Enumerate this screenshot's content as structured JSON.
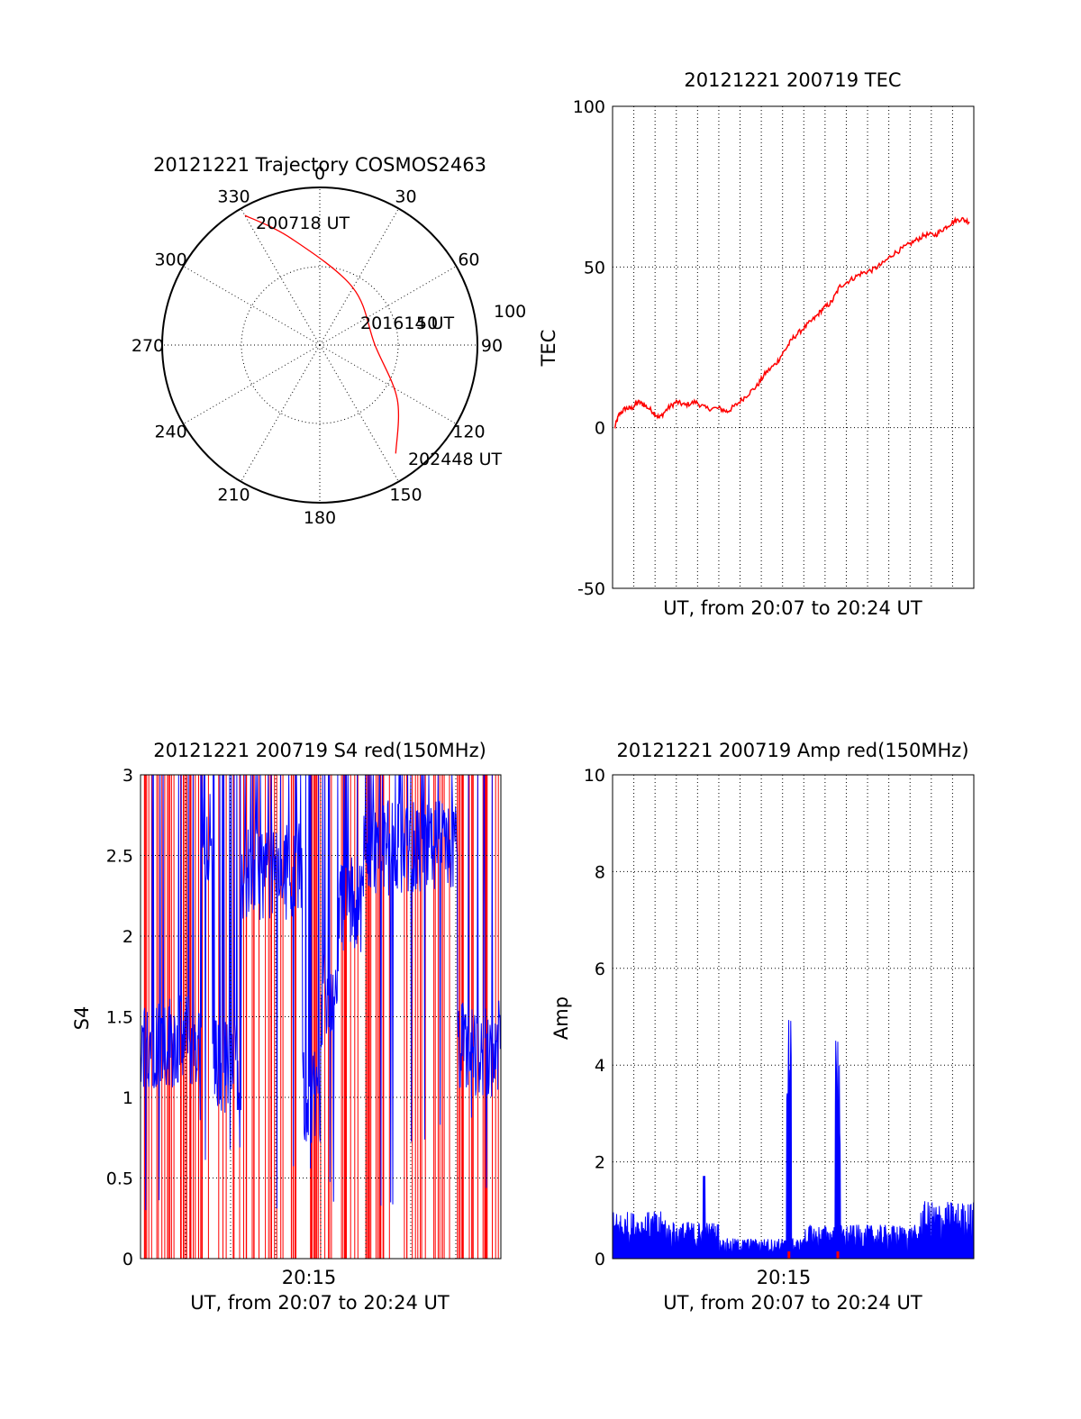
{
  "chart_data": [
    {
      "type": "polar",
      "title": "20121221 Trajectory COSMOS2463",
      "azimuth_labels": [
        "0",
        "30",
        "60",
        "90",
        "120",
        "150",
        "180",
        "210",
        "240",
        "270",
        "300",
        "330"
      ],
      "elevation_ring_label": "50",
      "outer_label": "100",
      "start_label": "200718 UT",
      "mid_label": "201614 UT",
      "end_label": "202448 UT",
      "trajectory": [
        {
          "az": 330,
          "r": 0.95
        },
        {
          "az": 345,
          "r": 0.7
        },
        {
          "az": 30,
          "r": 0.42
        },
        {
          "az": 90,
          "r": 0.35
        },
        {
          "az": 125,
          "r": 0.6
        },
        {
          "az": 145,
          "r": 0.84
        }
      ],
      "series_color": "#ff0000"
    },
    {
      "type": "line",
      "title": "20121221 200719 TEC",
      "ylabel": "TEC",
      "xlabel": "UT, from 20:07 to 20:24 UT",
      "ylim": [
        -50,
        100
      ],
      "yticks": [
        "-50",
        "0",
        "50",
        "100"
      ],
      "xlim_min": [
        7,
        24
      ],
      "grid": true,
      "series": [
        {
          "color": "#ff0000",
          "points": [
            [
              7.1,
              0
            ],
            [
              7.3,
              4
            ],
            [
              7.6,
              6
            ],
            [
              7.9,
              6
            ],
            [
              8.2,
              8
            ],
            [
              8.5,
              7
            ],
            [
              8.9,
              5
            ],
            [
              9.2,
              3
            ],
            [
              9.6,
              6
            ],
            [
              10.0,
              8
            ],
            [
              10.4,
              7
            ],
            [
              10.9,
              8
            ],
            [
              11.4,
              6
            ],
            [
              12.0,
              6
            ],
            [
              12.4,
              5
            ],
            [
              12.8,
              7
            ],
            [
              13.3,
              10
            ],
            [
              13.8,
              13
            ],
            [
              14.2,
              17
            ],
            [
              14.7,
              20
            ],
            [
              15.1,
              24
            ],
            [
              15.5,
              28
            ],
            [
              16.0,
              31
            ],
            [
              16.5,
              34
            ],
            [
              16.9,
              37
            ],
            [
              17.3,
              39
            ],
            [
              17.7,
              44
            ],
            [
              18.2,
              46
            ],
            [
              18.7,
              48
            ],
            [
              19.2,
              49
            ],
            [
              19.7,
              51
            ],
            [
              20.2,
              54
            ],
            [
              20.7,
              56
            ],
            [
              21.2,
              58
            ],
            [
              21.7,
              60
            ],
            [
              22.2,
              60
            ],
            [
              22.6,
              62
            ],
            [
              23.0,
              64
            ],
            [
              23.4,
              65
            ],
            [
              23.8,
              64
            ]
          ]
        }
      ]
    },
    {
      "type": "line",
      "title": "20121221 200719 S4 red(150MHz)",
      "ylabel": "S4",
      "xlabel": "UT, from 20:07 to 20:24 UT",
      "xtick_label": "20:15",
      "ylim": [
        0,
        3
      ],
      "yticks": [
        "0",
        "0.5",
        "1",
        "1.5",
        "2",
        "2.5",
        "3"
      ],
      "grid": true,
      "series": [
        {
          "name": "",
          "color": "#ff0000"
        },
        {
          "name": "",
          "color": "#0000ff"
        }
      ]
    },
    {
      "type": "line",
      "title": "20121221 200719 Amp red(150MHz)",
      "ylabel": "Amp",
      "xlabel": "UT, from 20:07 to 20:24 UT",
      "xtick_label": "20:15",
      "ylim": [
        0,
        10
      ],
      "yticks": [
        "0",
        "2",
        "4",
        "6",
        "8",
        "10"
      ],
      "grid": true,
      "peaks": [
        {
          "x": 15.3,
          "amp": 5.1
        },
        {
          "x": 17.6,
          "amp": 4.6
        }
      ],
      "series": [
        {
          "name": "",
          "color": "#0000ff"
        },
        {
          "name": "",
          "color": "#ff0000"
        }
      ]
    }
  ]
}
